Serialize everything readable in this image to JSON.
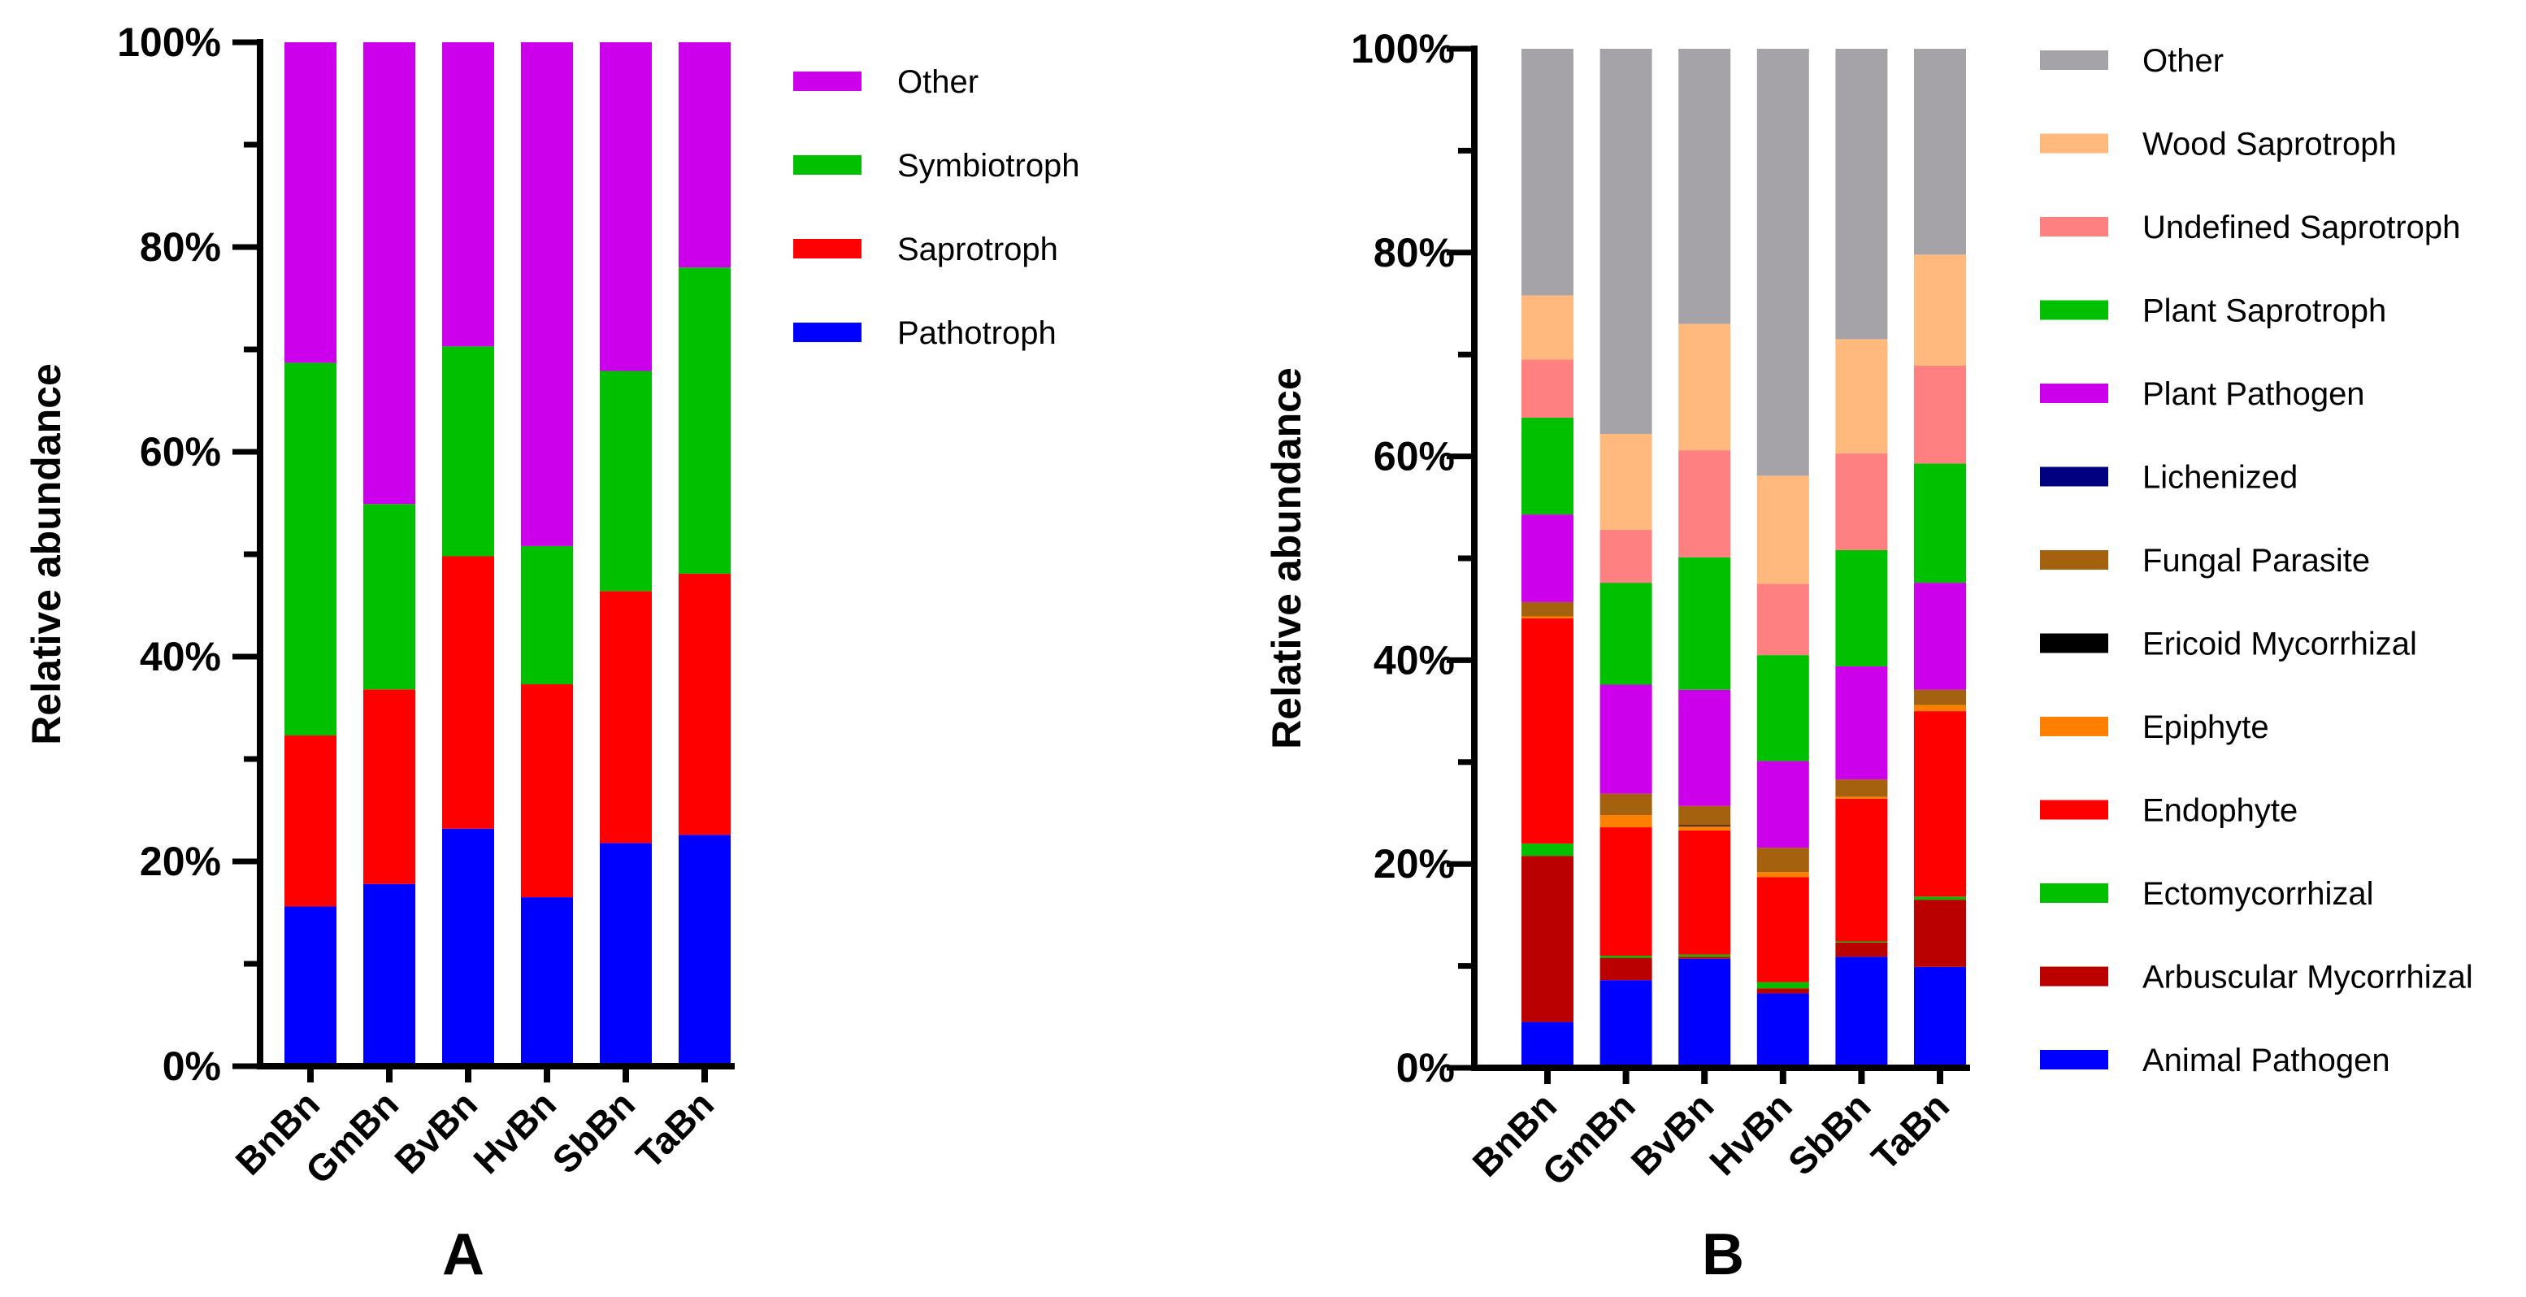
{
  "chart_data": [
    {
      "type": "bar",
      "stacked": true,
      "panel_label": "A",
      "ylabel": "Relative abundance",
      "ylim": [
        0,
        100
      ],
      "yticks": [
        "0%",
        "20%",
        "40%",
        "60%",
        "80%",
        "100%"
      ],
      "categories": [
        "BnBn",
        "GmBn",
        "BvBn",
        "HvBn",
        "SbBn",
        "TaBn"
      ],
      "legend_position": "right",
      "series": [
        {
          "name": "Pathotroph",
          "color": "#0000FF",
          "values": [
            15.6,
            17.8,
            23.2,
            16.5,
            21.8,
            22.6
          ]
        },
        {
          "name": "Saprotroph",
          "color": "#FF0000",
          "values": [
            16.7,
            19.0,
            26.6,
            20.8,
            24.6,
            25.5
          ]
        },
        {
          "name": "Symbiotroph",
          "color": "#00C000",
          "values": [
            36.4,
            18.1,
            20.5,
            13.5,
            21.5,
            29.9
          ]
        },
        {
          "name": "Other",
          "color": "#CC00EA",
          "values": [
            31.3,
            45.1,
            29.7,
            49.2,
            32.1,
            22.0
          ]
        }
      ]
    },
    {
      "type": "bar",
      "stacked": true,
      "panel_label": "B",
      "ylabel": "Relative abundance",
      "ylim": [
        0,
        100
      ],
      "yticks": [
        "0%",
        "20%",
        "40%",
        "60%",
        "80%",
        "100%"
      ],
      "categories": [
        "BnBn",
        "GmBn",
        "BvBn",
        "HvBn",
        "SbBn",
        "TaBn"
      ],
      "legend_position": "right",
      "series": [
        {
          "name": "Animal Pathogen",
          "color": "#0000FF",
          "values": [
            4.5,
            8.6,
            10.7,
            7.3,
            10.9,
            9.9
          ]
        },
        {
          "name": "Arbuscular Mycorrhizal",
          "color": "#BB0000",
          "values": [
            16.3,
            2.2,
            0.2,
            0.5,
            1.4,
            6.6
          ]
        },
        {
          "name": "Ectomycorrhizal",
          "color": "#00C000",
          "values": [
            1.2,
            0.2,
            0.2,
            0.6,
            0.1,
            0.3
          ]
        },
        {
          "name": "Endophyte",
          "color": "#FF0000",
          "values": [
            22.1,
            12.6,
            12.2,
            10.3,
            14.0,
            18.2
          ]
        },
        {
          "name": "Epiphyte",
          "color": "#FF8000",
          "values": [
            0.2,
            1.2,
            0.4,
            0.5,
            0.2,
            0.6
          ]
        },
        {
          "name": "Ericoid Mycorrhizal",
          "color": "#000000",
          "values": [
            0,
            0,
            0.1,
            0,
            0,
            0
          ]
        },
        {
          "name": "Fungal Parasite",
          "color": "#A5620E",
          "values": [
            1.4,
            2.1,
            1.9,
            2.4,
            1.7,
            1.5
          ]
        },
        {
          "name": "Lichenized",
          "color": "#000080",
          "values": [
            0,
            0,
            0,
            0,
            0,
            0
          ]
        },
        {
          "name": "Plant Pathogen",
          "color": "#CC00EA",
          "values": [
            8.6,
            10.7,
            11.4,
            8.5,
            11.1,
            10.5
          ]
        },
        {
          "name": "Plant Saprotroph",
          "color": "#00C000",
          "values": [
            9.5,
            10.0,
            13.0,
            10.4,
            11.4,
            11.7
          ]
        },
        {
          "name": "Undefined Saprotroph",
          "color": "#FF8080",
          "values": [
            5.7,
            5.2,
            10.5,
            7.0,
            9.5,
            9.6
          ]
        },
        {
          "name": "Wood Saprotroph",
          "color": "#FFB97C",
          "values": [
            6.3,
            9.4,
            12.4,
            10.6,
            11.2,
            10.9
          ]
        },
        {
          "name": "Other",
          "color": "#A5A3A8",
          "values": [
            24.2,
            37.8,
            27.0,
            41.9,
            28.5,
            20.2
          ]
        }
      ]
    }
  ]
}
